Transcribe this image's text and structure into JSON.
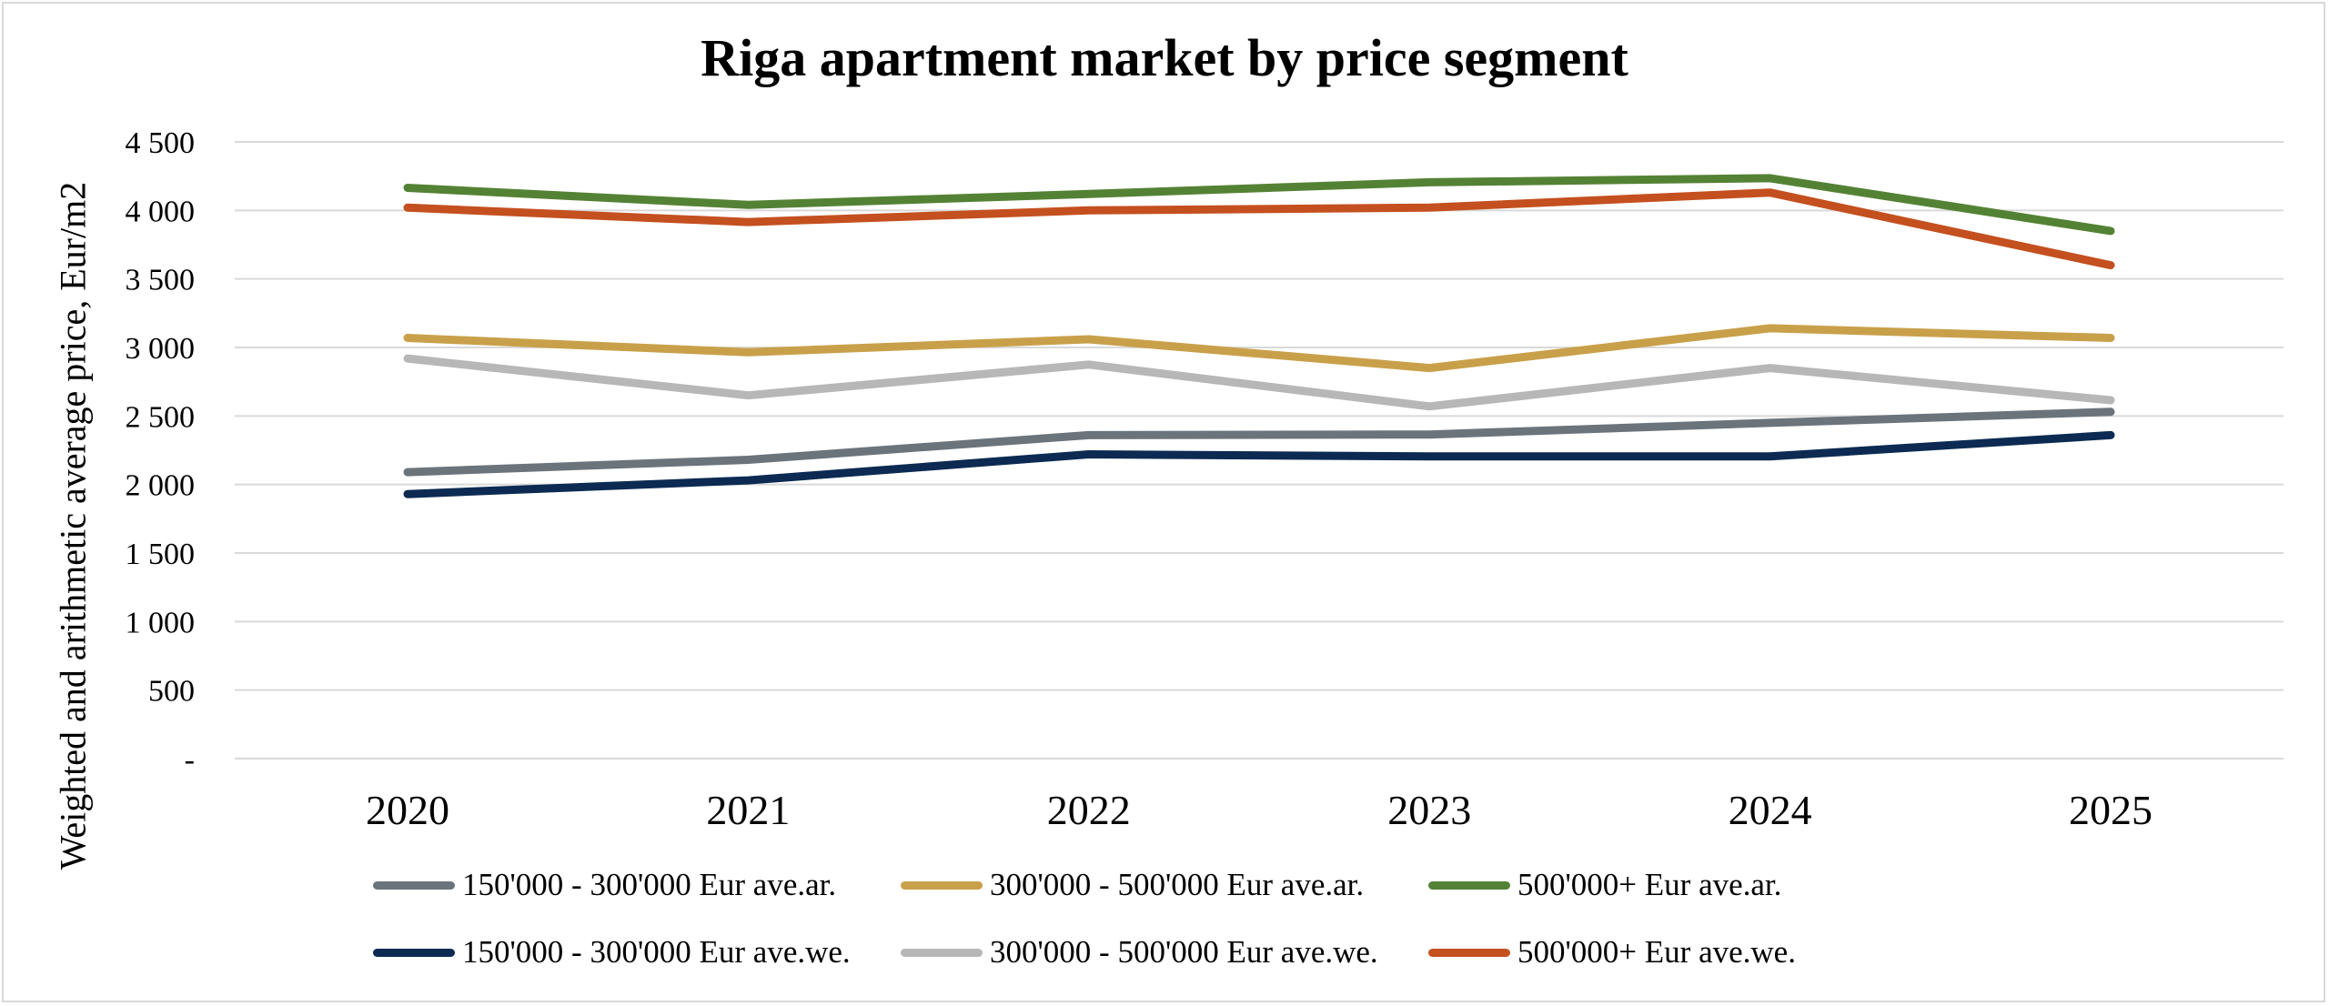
{
  "chart_data": {
    "type": "line",
    "title": "Riga apartment market by price segment",
    "xlabel": "",
    "ylabel": "Weighted and arithmetic average price, Eur/m2",
    "ylim": [
      0,
      4500
    ],
    "yticks": [
      0,
      500,
      1000,
      1500,
      2000,
      2500,
      3000,
      3500,
      4000,
      4500
    ],
    "ytick_labels": [
      "-",
      "500",
      "1 000",
      "1 500",
      "2 000",
      "2 500",
      "3 000",
      "3 500",
      "4 000",
      "4 500"
    ],
    "grid": true,
    "legend_position": "bottom",
    "categories": [
      "2020",
      "2021",
      "2022",
      "2023",
      "2024",
      "2025"
    ],
    "series": [
      {
        "name": "150'000 - 300'000 Eur ave.ar.",
        "color": "#6b747b",
        "values": [
          2090,
          2180,
          2360,
          2365,
          2450,
          2530
        ]
      },
      {
        "name": "300'000 - 500'000 Eur ave.ar.",
        "color": "#c9a04a",
        "values": [
          3070,
          2965,
          3060,
          2850,
          3140,
          3070
        ]
      },
      {
        "name": "500'000+ Eur ave.ar.",
        "color": "#548235",
        "values": [
          4165,
          4040,
          4120,
          4205,
          4235,
          3850
        ]
      },
      {
        "name": "150'000 - 300'000 Eur ave.we.",
        "color": "#0c2a52",
        "values": [
          1930,
          2030,
          2220,
          2205,
          2205,
          2360
        ]
      },
      {
        "name": "300'000 - 500'000 Eur ave.we.",
        "color": "#b7b7b7",
        "values": [
          2920,
          2650,
          2875,
          2570,
          2850,
          2615
        ]
      },
      {
        "name": "500'000+ Eur ave.we.",
        "color": "#c4501f",
        "values": [
          4020,
          3915,
          4000,
          4020,
          4130,
          3600
        ]
      }
    ]
  }
}
